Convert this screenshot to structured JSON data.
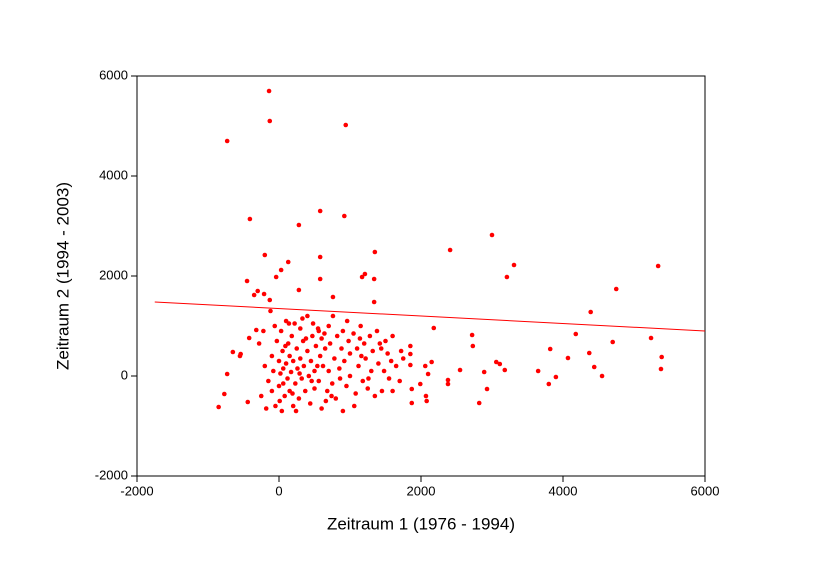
{
  "chart_data": {
    "type": "scatter",
    "x_label": "Zeitraum 1 (1976 - 1994)",
    "y_label": "Zeitraum 2 (1994 - 2003)",
    "xlim": [
      -2000,
      6000
    ],
    "ylim": [
      -2000,
      6000
    ],
    "xticks": [
      -2000,
      0,
      2000,
      4000,
      6000
    ],
    "yticks": [
      -2000,
      0,
      2000,
      4000,
      6000
    ],
    "color": "#ff0000",
    "x": [
      -140,
      -130,
      940,
      -730,
      -410,
      280,
      580,
      920,
      -200,
      580,
      1350,
      2410,
      3000,
      3310,
      3210,
      5340,
      4750,
      4390,
      -450,
      130,
      30,
      -40,
      280,
      580,
      760,
      1170,
      1210,
      1340,
      1340,
      -350,
      -210,
      -300,
      -130,
      -650,
      -550,
      -540,
      -850,
      -770,
      -730,
      -440,
      -420,
      -320,
      2720,
      2730,
      2180,
      3060,
      3110,
      3180,
      2550,
      2380,
      2380,
      2930,
      2820,
      2890,
      3650,
      3820,
      4070,
      4180,
      3900,
      3800,
      4370,
      4440,
      4550,
      4700,
      5240,
      5390,
      5380,
      2060,
      2100,
      2150,
      2070,
      2080,
      1870,
      1870,
      1850,
      1850,
      1850,
      1990,
      -200,
      -150,
      -100,
      -100,
      -80,
      -50,
      -30,
      0,
      0,
      20,
      30,
      40,
      50,
      60,
      80,
      100,
      100,
      120,
      130,
      150,
      150,
      170,
      180,
      200,
      200,
      220,
      230,
      250,
      260,
      280,
      300,
      300,
      320,
      340,
      350,
      370,
      400,
      400,
      420,
      440,
      450,
      470,
      500,
      500,
      520,
      550,
      560,
      580,
      600,
      600,
      620,
      650,
      680,
      700,
      700,
      720,
      750,
      780,
      800,
      820,
      850,
      880,
      900,
      900,
      920,
      950,
      980,
      1000,
      1000,
      1050,
      1080,
      1100,
      1120,
      1150,
      1180,
      1200,
      1220,
      1250,
      1280,
      1300,
      1320,
      1350,
      1380,
      1400,
      1420,
      1450,
      1480,
      1500,
      1530,
      1550,
      1580,
      1600,
      1650,
      1700,
      1720,
      1750,
      -250,
      -280,
      -220,
      -180,
      -120,
      -60,
      60,
      140,
      240,
      330,
      480,
      560,
      660,
      760,
      960,
      1060,
      1140,
      10,
      90,
      190,
      290,
      380,
      460,
      540,
      640,
      740,
      860,
      1160,
      1260,
      1440,
      1600
    ],
    "y": [
      5700,
      5100,
      5020,
      4700,
      3140,
      3020,
      3300,
      3200,
      2420,
      2380,
      2480,
      2520,
      2820,
      2220,
      1980,
      2200,
      1740,
      1280,
      1900,
      2280,
      2120,
      1980,
      1720,
      1940,
      1580,
      1980,
      2040,
      1940,
      1480,
      1620,
      1640,
      1700,
      1520,
      480,
      400,
      440,
      -620,
      -360,
      40,
      -520,
      760,
      920,
      820,
      600,
      960,
      280,
      240,
      120,
      120,
      -80,
      -160,
      -260,
      -540,
      80,
      100,
      540,
      360,
      840,
      -20,
      -160,
      460,
      180,
      0,
      680,
      760,
      380,
      140,
      200,
      40,
      280,
      -400,
      -500,
      -260,
      -540,
      600,
      440,
      220,
      -160,
      200,
      -100,
      400,
      -300,
      100,
      -600,
      700,
      300,
      -200,
      50,
      900,
      -700,
      500,
      150,
      -400,
      1100,
      250,
      -50,
      650,
      400,
      -300,
      80,
      800,
      -600,
      300,
      1050,
      -150,
      550,
      150,
      -450,
      350,
      950,
      -50,
      700,
      200,
      -300,
      500,
      1200,
      0,
      -550,
      300,
      800,
      100,
      -250,
      600,
      950,
      -100,
      400,
      -650,
      750,
      200,
      550,
      -300,
      1000,
      100,
      650,
      -150,
      350,
      -450,
      800,
      150,
      550,
      -700,
      900,
      300,
      -200,
      700,
      450,
      0,
      850,
      -350,
      550,
      200,
      1000,
      -100,
      650,
      350,
      -250,
      800,
      100,
      500,
      -400,
      900,
      250,
      650,
      -300,
      100,
      700,
      450,
      -50,
      300,
      800,
      200,
      -100,
      500,
      350,
      -400,
      650,
      900,
      -650,
      1300,
      1000,
      -150,
      1050,
      -700,
      1150,
      1050,
      900,
      -500,
      1200,
      1100,
      -600,
      750,
      -500,
      600,
      -350,
      50,
      750,
      -100,
      200,
      850,
      -400,
      -50,
      400,
      -50,
      550,
      -300
    ],
    "trendline": {
      "x": [
        -1750,
        6000
      ],
      "y": [
        1480,
        900
      ],
      "color": "#ff0000"
    }
  }
}
